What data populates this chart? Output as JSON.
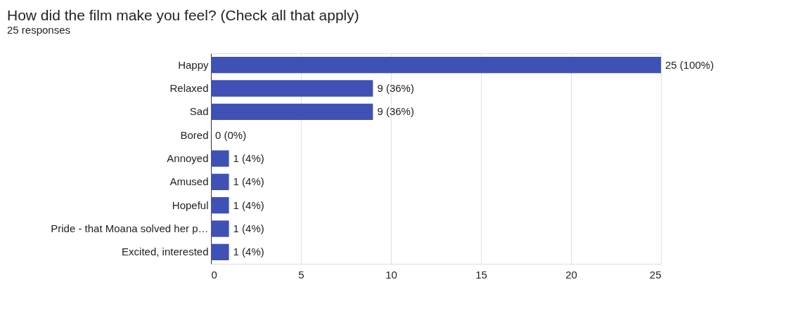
{
  "chart_data": {
    "type": "bar",
    "orientation": "horizontal",
    "title": "How did the film make you feel? (Check all that apply)",
    "subtitle": "25 responses",
    "categories": [
      "Happy",
      "Relaxed",
      "Sad",
      "Bored",
      "Annoyed",
      "Amused",
      "Hopeful",
      "Pride - that Moana solved her p…",
      "Excited, interested"
    ],
    "values": [
      25,
      9,
      9,
      0,
      1,
      1,
      1,
      1,
      1
    ],
    "value_labels": [
      "25 (100%)",
      "9 (36%)",
      "9 (36%)",
      "0 (0%)",
      "1 (4%)",
      "1 (4%)",
      "1 (4%)",
      "1 (4%)",
      "1 (4%)"
    ],
    "color": "#3f51b5",
    "xlim": [
      0,
      25
    ],
    "xticks": [
      0,
      5,
      10,
      15,
      20,
      25
    ],
    "grid": "x"
  }
}
